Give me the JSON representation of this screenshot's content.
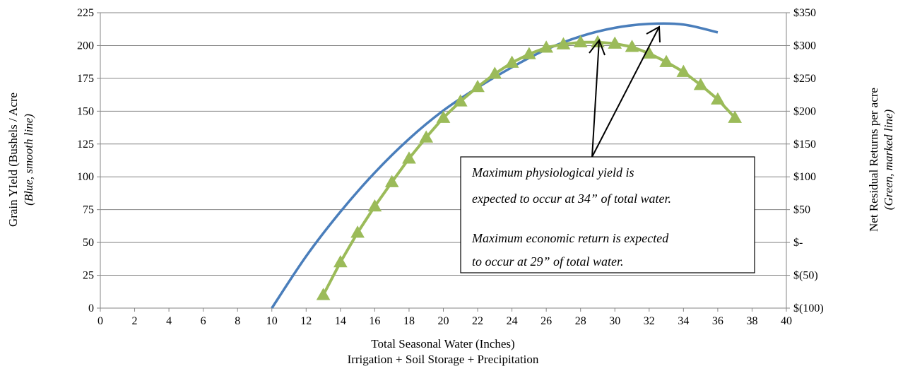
{
  "chart_data": {
    "type": "line",
    "xlabel": "Total Seasonal Water (Inches)",
    "xlabel_sub": "Irrigation + Soil Storage + Precipitation",
    "ylabel_left": "Grain YIeld (Bushels / Acre",
    "ylabel_left_sub": "(Blue, smooth line)",
    "ylabel_right": "Net Residual Returns per acre",
    "ylabel_right_sub": "(Green, marked line)",
    "xlim": [
      0,
      40
    ],
    "ylim_left": [
      0,
      225
    ],
    "ylim_right": [
      -100,
      350
    ],
    "x_ticks": [
      "0",
      "2",
      "4",
      "6",
      "8",
      "10",
      "12",
      "14",
      "16",
      "18",
      "20",
      "22",
      "24",
      "26",
      "28",
      "30",
      "32",
      "34",
      "36",
      "38",
      "40"
    ],
    "y_left_ticks": [
      "0",
      "25",
      "50",
      "75",
      "100",
      "125",
      "150",
      "175",
      "200",
      "225"
    ],
    "y_right_ticks": [
      "$(100)",
      "$(50)",
      "$-",
      "$50",
      "$100",
      "$150",
      "$200",
      "$250",
      "$300",
      "$350"
    ],
    "grid": true,
    "series": [
      {
        "axis": "left",
        "color": "#4a7ebb",
        "marker": "none",
        "smooth": true,
        "x": [
          10,
          12,
          14,
          16,
          18,
          20,
          22,
          24,
          26,
          28,
          30,
          32,
          34,
          36
        ],
        "y": [
          0,
          39.5,
          73.4,
          103.2,
          128.9,
          150.5,
          168,
          183.5,
          197,
          207,
          213.5,
          216.5,
          216,
          210
        ]
      },
      {
        "axis": "right",
        "color": "#9bbb59",
        "marker": "triangle",
        "smooth": false,
        "x": [
          13,
          14,
          15,
          16,
          17,
          18,
          19,
          20,
          21,
          22,
          23,
          24,
          25,
          26,
          27,
          28,
          29,
          30,
          31,
          32,
          33,
          34,
          35,
          36,
          37
        ],
        "y": [
          -80,
          -30,
          15,
          55,
          92,
          128,
          160,
          190,
          215,
          237,
          257,
          274,
          287,
          297,
          302,
          305,
          305,
          303,
          298,
          288,
          275,
          260,
          240,
          218,
          190
        ]
      }
    ],
    "annotation": {
      "lines": [
        "Maximum physiological yield is",
        "expected to occur at 34” of total water.",
        "",
        "Maximum economic return is expected",
        "to occur at 29” of total water."
      ]
    }
  }
}
